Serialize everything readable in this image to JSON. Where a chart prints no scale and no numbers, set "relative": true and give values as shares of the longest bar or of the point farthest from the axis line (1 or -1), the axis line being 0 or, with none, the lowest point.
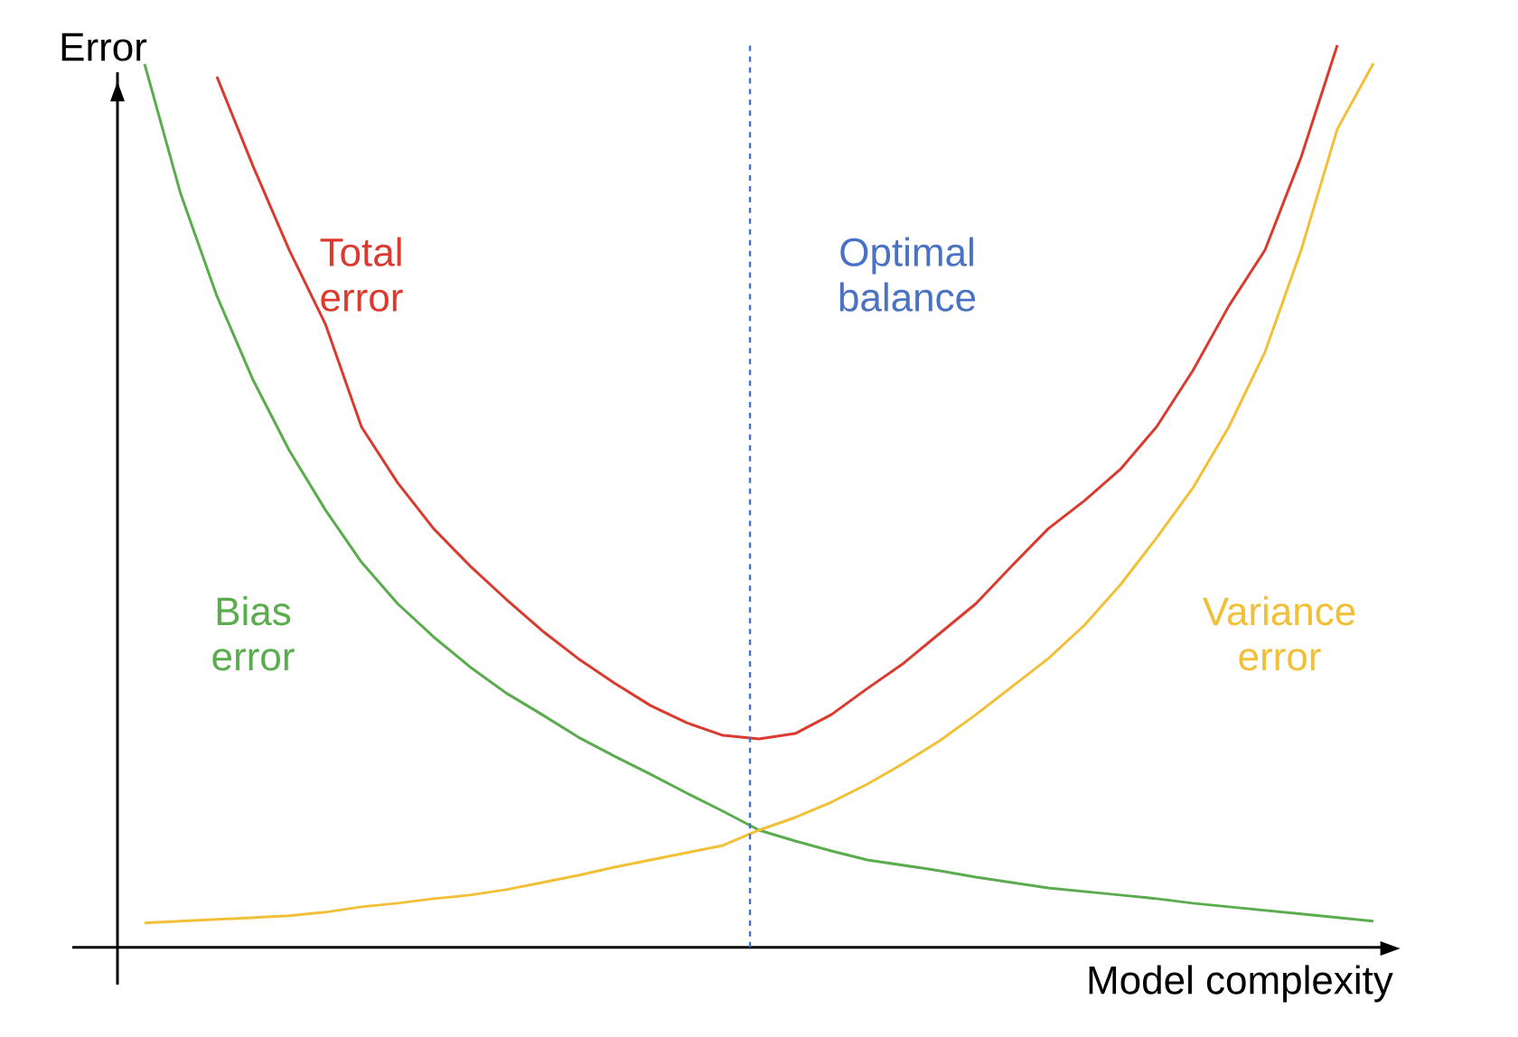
{
  "chart_data": {
    "type": "line",
    "relative": true,
    "xlabel": "Model complexity",
    "ylabel": "Error",
    "annotations": [
      "Optimal balance"
    ],
    "categories": [
      null,
      null,
      null,
      null,
      null,
      null,
      null,
      null,
      null,
      null,
      null,
      null,
      null,
      null,
      null,
      null,
      null,
      null,
      null,
      null,
      null,
      null,
      null,
      null,
      null,
      null,
      null,
      null,
      null,
      null,
      null,
      null,
      null,
      null,
      null
    ],
    "series": [
      {
        "name": "Total error",
        "color": "#db3a2f",
        "values": [
          null,
          null,
          0.965,
          0.866,
          0.773,
          0.691,
          0.577,
          0.515,
          0.464,
          0.423,
          0.386,
          0.351,
          0.32,
          0.293,
          0.268,
          0.249,
          0.235,
          0.231,
          0.237,
          0.258,
          0.287,
          0.315,
          0.348,
          0.381,
          0.423,
          0.464,
          0.495,
          0.53,
          0.577,
          0.639,
          0.711,
          0.773,
          0.876,
          1.0,
          null
        ]
      },
      {
        "name": "Bias error",
        "color": "#5aac4e",
        "values": [
          0.979,
          0.835,
          0.722,
          0.629,
          0.551,
          0.485,
          0.427,
          0.381,
          0.344,
          0.311,
          0.282,
          0.258,
          0.233,
          0.212,
          0.192,
          0.171,
          0.151,
          0.13,
          0.118,
          0.107,
          0.097,
          0.091,
          0.085,
          0.078,
          0.072,
          0.066,
          0.062,
          0.058,
          0.054,
          0.049,
          0.045,
          0.041,
          0.037,
          0.033,
          0.029
        ]
      },
      {
        "name": "Variance error",
        "color": "#f2c037",
        "values": [
          0.027,
          0.029,
          0.031,
          0.033,
          0.035,
          0.039,
          0.045,
          0.049,
          0.054,
          0.058,
          0.064,
          0.072,
          0.08,
          0.089,
          0.097,
          0.105,
          0.113,
          0.13,
          0.144,
          0.161,
          0.181,
          0.204,
          0.229,
          0.258,
          0.289,
          0.32,
          0.357,
          0.402,
          0.454,
          0.509,
          0.577,
          0.66,
          0.773,
          0.907,
          0.98
        ]
      }
    ]
  }
}
